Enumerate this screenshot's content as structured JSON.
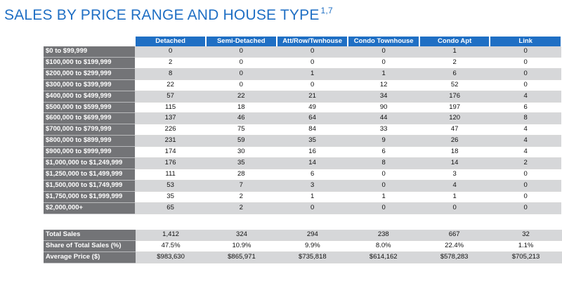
{
  "title": "SALES BY PRICE RANGE AND HOUSE TYPE",
  "title_footnote": "1,7",
  "columns": [
    "Detached",
    "Semi-Detached",
    "Att/Row/Twnhouse",
    "Condo Townhouse",
    "Condo Apt",
    "Link"
  ],
  "rows": [
    {
      "label": "$0 to $99,999",
      "values": [
        "0",
        "0",
        "0",
        "0",
        "1",
        "0"
      ]
    },
    {
      "label": "$100,000 to $199,999",
      "values": [
        "2",
        "0",
        "0",
        "0",
        "2",
        "0"
      ]
    },
    {
      "label": "$200,000 to $299,999",
      "values": [
        "8",
        "0",
        "1",
        "1",
        "6",
        "0"
      ]
    },
    {
      "label": "$300,000 to $399,999",
      "values": [
        "22",
        "0",
        "0",
        "12",
        "52",
        "0"
      ]
    },
    {
      "label": "$400,000 to $499,999",
      "values": [
        "57",
        "22",
        "21",
        "34",
        "176",
        "4"
      ]
    },
    {
      "label": "$500,000 to $599,999",
      "values": [
        "115",
        "18",
        "49",
        "90",
        "197",
        "6"
      ]
    },
    {
      "label": "$600,000 to $699,999",
      "values": [
        "137",
        "46",
        "64",
        "44",
        "120",
        "8"
      ]
    },
    {
      "label": "$700,000 to $799,999",
      "values": [
        "226",
        "75",
        "84",
        "33",
        "47",
        "4"
      ]
    },
    {
      "label": "$800,000 to $899,999",
      "values": [
        "231",
        "59",
        "35",
        "9",
        "26",
        "4"
      ]
    },
    {
      "label": "$900,000 to $999,999",
      "values": [
        "174",
        "30",
        "16",
        "6",
        "18",
        "4"
      ]
    },
    {
      "label": "$1,000,000 to $1,249,999",
      "values": [
        "176",
        "35",
        "14",
        "8",
        "14",
        "2"
      ]
    },
    {
      "label": "$1,250,000 to $1,499,999",
      "values": [
        "111",
        "28",
        "6",
        "0",
        "3",
        "0"
      ]
    },
    {
      "label": "$1,500,000 to $1,749,999",
      "values": [
        "53",
        "7",
        "3",
        "0",
        "4",
        "0"
      ]
    },
    {
      "label": "$1,750,000 to $1,999,999",
      "values": [
        "35",
        "2",
        "1",
        "1",
        "1",
        "0"
      ]
    },
    {
      "label": "$2,000,000+",
      "values": [
        "65",
        "2",
        "0",
        "0",
        "0",
        "0"
      ]
    }
  ],
  "summary": [
    {
      "label": "Total Sales",
      "values": [
        "1,412",
        "324",
        "294",
        "238",
        "667",
        "32"
      ]
    },
    {
      "label": "Share of Total Sales (%)",
      "values": [
        "47.5%",
        "10.9%",
        "9.9%",
        "8.0%",
        "22.4%",
        "1.1%"
      ]
    },
    {
      "label": "Average Price ($)",
      "values": [
        "$983,630",
        "$865,971",
        "$735,818",
        "$614,162",
        "$578,283",
        "$705,213"
      ]
    }
  ],
  "colors": {
    "header_blue": "#1f6fc4",
    "row_label_gray": "#737477",
    "shade_gray": "#d6d7d9",
    "title_blue": "#1f6fc4"
  }
}
